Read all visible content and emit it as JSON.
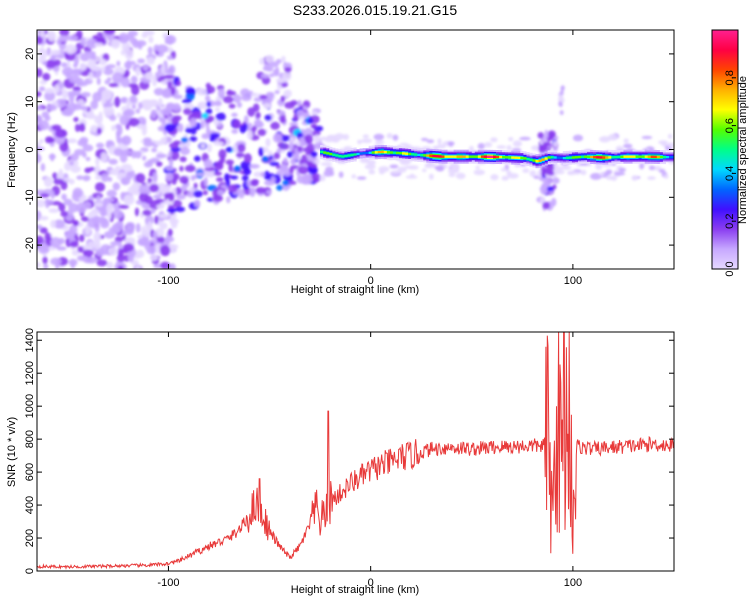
{
  "title": "S233.2026.015.19.21.G15",
  "chart_data": [
    {
      "type": "heatmap",
      "xlabel": "Height of straight line (km)",
      "ylabel": "Frequency (Hz)",
      "xlim": [
        -165,
        150
      ],
      "ylim": [
        -25,
        25
      ],
      "x_ticks": [
        -100,
        0,
        100
      ],
      "y_ticks": [
        -20,
        -10,
        0,
        10,
        20
      ],
      "colorbar": {
        "label": "Normalized spectral amplitude",
        "range": [
          0,
          1
        ],
        "ticks": [
          "0.0",
          "0.2",
          "0.4",
          "0.6",
          "0.8"
        ],
        "colors": [
          "#e6d9ff",
          "#c7a8ff",
          "#8a3df0",
          "#4010ff",
          "#0066ff",
          "#00d9ff",
          "#00ff88",
          "#55ff00",
          "#ffff00",
          "#ffb000",
          "#ff4400",
          "#ff0044",
          "#ff2090"
        ]
      },
      "ridge": {
        "x": [
          -25,
          -15,
          -5,
          5,
          15,
          25,
          35,
          45,
          55,
          65,
          75,
          82,
          88,
          95,
          105,
          115,
          125,
          135,
          145,
          150
        ],
        "y": [
          -0.5,
          -1.5,
          -0.8,
          -0.5,
          -0.8,
          -1.2,
          -1.5,
          -1.5,
          -1.5,
          -1.6,
          -1.8,
          -2.5,
          -1.6,
          -1.8,
          -1.5,
          -1.7,
          -1.5,
          -1.5,
          -1.6,
          -1.6
        ],
        "amplitude": [
          0.5,
          0.6,
          0.55,
          0.65,
          0.7,
          0.75,
          0.85,
          0.85,
          0.85,
          0.85,
          0.75,
          0.7,
          0.5,
          0.6,
          0.75,
          0.8,
          0.8,
          0.75,
          0.65,
          0.6
        ]
      }
    },
    {
      "type": "line",
      "xlabel": "Height of straight line (km)",
      "ylabel": "SNR (10 * v/v)",
      "xlim": [
        -165,
        150
      ],
      "ylim": [
        0,
        1450
      ],
      "x_ticks": [
        -100,
        0,
        100
      ],
      "y_ticks": [
        0,
        200,
        400,
        600,
        800,
        1000,
        1200,
        1400
      ],
      "color": "#e83a3a",
      "series": [
        {
          "x": [
            -165,
            -150,
            -130,
            -110,
            -100,
            -95,
            -90,
            -85,
            -80,
            -75,
            -70,
            -65,
            -60,
            -57,
            -55,
            -52,
            -50,
            -45,
            -40,
            -35,
            -30,
            -27,
            -25,
            -22,
            -20,
            -15,
            -10,
            -5,
            0,
            5,
            10,
            15,
            20,
            25,
            30,
            40,
            50,
            60,
            70,
            80,
            85,
            88,
            90,
            92,
            95,
            98,
            100,
            102,
            105,
            110,
            120,
            130,
            140,
            150
          ],
          "values": [
            28,
            25,
            30,
            35,
            45,
            60,
            90,
            120,
            150,
            175,
            200,
            250,
            330,
            420,
            370,
            300,
            240,
            150,
            80,
            150,
            280,
            380,
            300,
            360,
            420,
            470,
            530,
            570,
            610,
            640,
            660,
            690,
            700,
            720,
            740,
            750,
            740,
            750,
            755,
            760,
            760,
            820,
            200,
            1200,
            500,
            1100,
            400,
            760,
            750,
            740,
            750,
            760,
            770,
            760
          ]
        }
      ]
    }
  ]
}
